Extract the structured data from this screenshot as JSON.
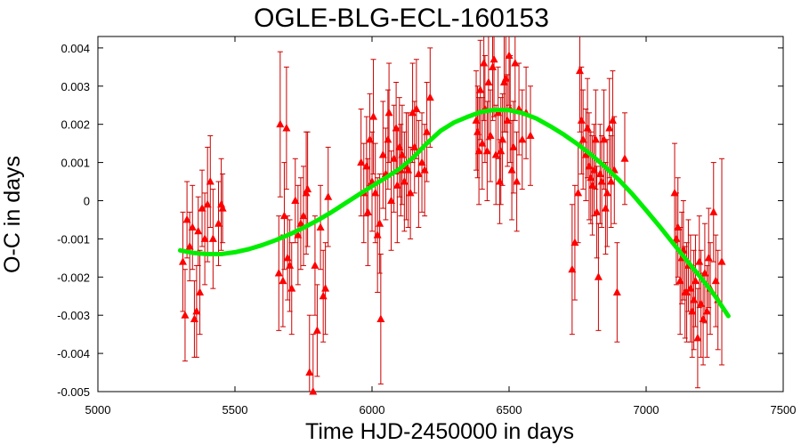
{
  "chart_data": {
    "type": "scatter",
    "title": "OGLE-BLG-ECL-160153",
    "xlabel": "Time HJD-2450000 in days",
    "ylabel": "O-C in days",
    "xlim": [
      5000,
      7500
    ],
    "ylim": [
      -0.005,
      0.0043
    ],
    "x_ticks": [
      5000,
      5500,
      6000,
      6500,
      7000,
      7500
    ],
    "x_tick_labels": [
      "5000",
      "5500",
      "6000",
      "6500",
      "7000",
      "7500"
    ],
    "y_ticks": [
      -0.005,
      -0.004,
      -0.003,
      -0.002,
      -0.001,
      0,
      0.001,
      0.002,
      0.003,
      0.004
    ],
    "y_tick_labels": [
      "-0.005",
      "-0.004",
      "-0.003",
      "-0.002",
      "-0.001",
      "0",
      "0.001",
      "0.002",
      "0.003",
      "0.004"
    ],
    "grid": false,
    "colors": {
      "points": "#ff0000",
      "errorbars": "#cc0000",
      "fit": "#00ee00"
    },
    "series": [
      {
        "kind": "points_with_errors",
        "marker": "triangle",
        "points": [
          [
            5310,
            -0.0016,
            0.0013
          ],
          [
            5318,
            -0.003,
            0.0012
          ],
          [
            5325,
            -0.0005,
            0.001
          ],
          [
            5335,
            -0.0012,
            0.0009
          ],
          [
            5345,
            -0.0007,
            0.0011
          ],
          [
            5352,
            -0.0031,
            0.001
          ],
          [
            5360,
            -0.0029,
            0.0012
          ],
          [
            5366,
            -0.0008,
            0.0009
          ],
          [
            5372,
            -0.0024,
            0.0011
          ],
          [
            5380,
            -0.0002,
            0.001
          ],
          [
            5390,
            -0.001,
            0.0012
          ],
          [
            5400,
            -0.0001,
            0.0015
          ],
          [
            5410,
            0.0005,
            0.0012
          ],
          [
            5420,
            -0.001,
            0.0013
          ],
          [
            5440,
            -0.0006,
            0.0011
          ],
          [
            5450,
            -0.0001,
            0.0012
          ],
          [
            5455,
            -0.0002,
            0.0009
          ],
          [
            5660,
            -0.0019,
            0.0015
          ],
          [
            5665,
            0.002,
            0.0019
          ],
          [
            5675,
            -0.0021,
            0.0012
          ],
          [
            5680,
            -0.0004,
            0.0014
          ],
          [
            5688,
            0.0019,
            0.0016
          ],
          [
            5692,
            -0.0015,
            0.0011
          ],
          [
            5700,
            -0.0017,
            0.0012
          ],
          [
            5707,
            -0.0023,
            0.0012
          ],
          [
            5720,
            0.0,
            0.0011
          ],
          [
            5730,
            -0.0009,
            0.0013
          ],
          [
            5740,
            -0.0006,
            0.0012
          ],
          [
            5750,
            -0.0004,
            0.0013
          ],
          [
            5760,
            0.0002,
            0.0016
          ],
          [
            5765,
            0.0003,
            0.0015
          ],
          [
            5772,
            -0.0045,
            0.0015
          ],
          [
            5785,
            -0.005,
            0.0015
          ],
          [
            5792,
            -0.0017,
            0.0013
          ],
          [
            5800,
            -0.0034,
            0.0012
          ],
          [
            5812,
            -0.0007,
            0.0011
          ],
          [
            5822,
            -0.0025,
            0.0012
          ],
          [
            5830,
            -0.0023,
            0.0012
          ],
          [
            5840,
            0.0001,
            0.0013
          ],
          [
            5960,
            0.001,
            0.0014
          ],
          [
            5970,
            0.0002,
            0.0013
          ],
          [
            5980,
            0.0009,
            0.0013
          ],
          [
            5985,
            -0.0003,
            0.0014
          ],
          [
            5992,
            0.0016,
            0.0012
          ],
          [
            6000,
            0.0005,
            0.0013
          ],
          [
            6005,
            0.0022,
            0.0015
          ],
          [
            6012,
            0.0002,
            0.0013
          ],
          [
            6020,
            -0.0009,
            0.0015
          ],
          [
            6028,
            -0.0006,
            0.0013
          ],
          [
            6032,
            -0.0031,
            0.0017
          ],
          [
            6040,
            0.0012,
            0.0014
          ],
          [
            6050,
            0.0007,
            0.0012
          ],
          [
            6058,
            0.0016,
            0.0013
          ],
          [
            6062,
            0.0023,
            0.0013
          ],
          [
            6070,
            0.0,
            0.0013
          ],
          [
            6080,
            0.0011,
            0.0014
          ],
          [
            6088,
            0.0019,
            0.0012
          ],
          [
            6092,
            0.0004,
            0.0015
          ],
          [
            6100,
            0.0014,
            0.0013
          ],
          [
            6105,
            0.0008,
            0.0012
          ],
          [
            6110,
            0.0012,
            0.0013
          ],
          [
            6118,
            0.0005,
            0.0013
          ],
          [
            6125,
            0.0009,
            0.0014
          ],
          [
            6132,
            0.0008,
            0.0015
          ],
          [
            6140,
            0.0002,
            0.0012
          ],
          [
            6148,
            0.0023,
            0.0013
          ],
          [
            6155,
            0.0014,
            0.0012
          ],
          [
            6162,
            0.0024,
            0.0013
          ],
          [
            6170,
            0.0007,
            0.0014
          ],
          [
            6182,
            0.001,
            0.0013
          ],
          [
            6192,
            0.0008,
            0.0012
          ],
          [
            6200,
            0.0018,
            0.0013
          ],
          [
            6212,
            0.0027,
            0.0013
          ],
          [
            6380,
            0.0021,
            0.0013
          ],
          [
            6385,
            0.0018,
            0.0012
          ],
          [
            6390,
            0.0013,
            0.0014
          ],
          [
            6395,
            0.0029,
            0.0013
          ],
          [
            6402,
            0.0015,
            0.0012
          ],
          [
            6408,
            0.0036,
            0.0015
          ],
          [
            6412,
            0.0024,
            0.0014
          ],
          [
            6420,
            0.0013,
            0.0013
          ],
          [
            6425,
            0.0031,
            0.0015
          ],
          [
            6432,
            0.0017,
            0.0012
          ],
          [
            6440,
            0.0035,
            0.0014
          ],
          [
            6445,
            0.0037,
            0.0015
          ],
          [
            6452,
            0.0012,
            0.0013
          ],
          [
            6460,
            0.0023,
            0.0012
          ],
          [
            6466,
            0.0005,
            0.0011
          ],
          [
            6470,
            0.0013,
            0.0014
          ],
          [
            6476,
            0.0016,
            0.0012
          ],
          [
            6482,
            0.0031,
            0.0013
          ],
          [
            6488,
            0.0032,
            0.0014
          ],
          [
            6494,
            0.0021,
            0.0012
          ],
          [
            6500,
            0.0038,
            0.0013
          ],
          [
            6504,
            0.0024,
            0.0014
          ],
          [
            6510,
            0.0008,
            0.0013
          ],
          [
            6516,
            0.0014,
            0.0012
          ],
          [
            6522,
            0.0036,
            0.0015
          ],
          [
            6528,
            0.0005,
            0.0013
          ],
          [
            6536,
            0.0024,
            0.0012
          ],
          [
            6548,
            0.0016,
            0.0013
          ],
          [
            6562,
            0.0023,
            0.0012
          ],
          [
            6578,
            0.0017,
            0.0013
          ],
          [
            6730,
            -0.0018,
            0.0017
          ],
          [
            6740,
            -0.0011,
            0.0015
          ],
          [
            6752,
            0.0002,
            0.0013
          ],
          [
            6758,
            0.0034,
            0.0016
          ],
          [
            6764,
            0.0021,
            0.0014
          ],
          [
            6770,
            0.0016,
            0.0013
          ],
          [
            6780,
            0.0012,
            0.0012
          ],
          [
            6786,
            0.0019,
            0.0013
          ],
          [
            6792,
            0.0009,
            0.0014
          ],
          [
            6798,
            0.0006,
            0.0012
          ],
          [
            6804,
            0.0004,
            0.0013
          ],
          [
            6810,
            0.0008,
            0.0012
          ],
          [
            6816,
            0.0016,
            0.0013
          ],
          [
            6820,
            -0.0003,
            0.0012
          ],
          [
            6826,
            -0.002,
            0.0014
          ],
          [
            6832,
            0.0007,
            0.0013
          ],
          [
            6838,
            0.0005,
            0.0012
          ],
          [
            6846,
            0.0016,
            0.0013
          ],
          [
            6852,
            -0.0002,
            0.0012
          ],
          [
            6858,
            0.0002,
            0.0014
          ],
          [
            6866,
            0.0019,
            0.0013
          ],
          [
            6872,
            0.0005,
            0.0012
          ],
          [
            6878,
            0.0021,
            0.0013
          ],
          [
            6884,
            0.0008,
            0.0014
          ],
          [
            6894,
            -0.0024,
            0.0013
          ],
          [
            6922,
            0.0011,
            0.0012
          ],
          [
            7104,
            0.0002,
            0.0013
          ],
          [
            7110,
            -0.001,
            0.0012
          ],
          [
            7116,
            -0.0007,
            0.0013
          ],
          [
            7124,
            -0.0021,
            0.0014
          ],
          [
            7130,
            -0.0015,
            0.0012
          ],
          [
            7136,
            -0.0013,
            0.0013
          ],
          [
            7142,
            -0.0024,
            0.0012
          ],
          [
            7148,
            -0.0024,
            0.0013
          ],
          [
            7154,
            -0.0017,
            0.0012
          ],
          [
            7162,
            -0.0023,
            0.0014
          ],
          [
            7168,
            -0.0029,
            0.0012
          ],
          [
            7174,
            -0.0026,
            0.0013
          ],
          [
            7180,
            -0.0021,
            0.0012
          ],
          [
            7188,
            -0.0036,
            0.0013
          ],
          [
            7194,
            -0.0016,
            0.0012
          ],
          [
            7200,
            -0.0027,
            0.0014
          ],
          [
            7208,
            -0.0031,
            0.0012
          ],
          [
            7214,
            -0.0019,
            0.0013
          ],
          [
            7222,
            -0.0029,
            0.0012
          ],
          [
            7228,
            -0.0015,
            0.0013
          ],
          [
            7234,
            -0.0023,
            0.0012
          ],
          [
            7246,
            -0.0003,
            0.0013
          ],
          [
            7254,
            -0.0021,
            0.0012
          ],
          [
            7262,
            -0.0026,
            0.0013
          ],
          [
            7276,
            -0.0016,
            0.0027
          ]
        ]
      },
      {
        "kind": "fit_curve",
        "x": [
          5300,
          5350,
          5400,
          5450,
          5500,
          5550,
          5600,
          5650,
          5700,
          5750,
          5800,
          5850,
          5900,
          5950,
          6000,
          6050,
          6100,
          6150,
          6200,
          6250,
          6300,
          6350,
          6400,
          6450,
          6500,
          6550,
          6600,
          6650,
          6700,
          6750,
          6800,
          6850,
          6900,
          6950,
          7000,
          7050,
          7100,
          7150,
          7200,
          7250,
          7300
        ],
        "y": [
          -0.0013,
          -0.00137,
          -0.0014,
          -0.0014,
          -0.00135,
          -0.00127,
          -0.00116,
          -0.00103,
          -0.00088,
          -0.00071,
          -0.00052,
          -0.00031,
          -8e-05,
          0.00015,
          0.00038,
          0.0006,
          0.00083,
          0.00113,
          0.0015,
          0.00183,
          0.00205,
          0.0022,
          0.00233,
          0.00238,
          0.00237,
          0.00229,
          0.00215,
          0.00195,
          0.00173,
          0.00148,
          0.0012,
          0.00089,
          0.00055,
          0.00017,
          -0.00025,
          -0.00068,
          -0.00113,
          -0.00158,
          -0.00202,
          -0.00248,
          -0.00302
        ]
      }
    ]
  }
}
